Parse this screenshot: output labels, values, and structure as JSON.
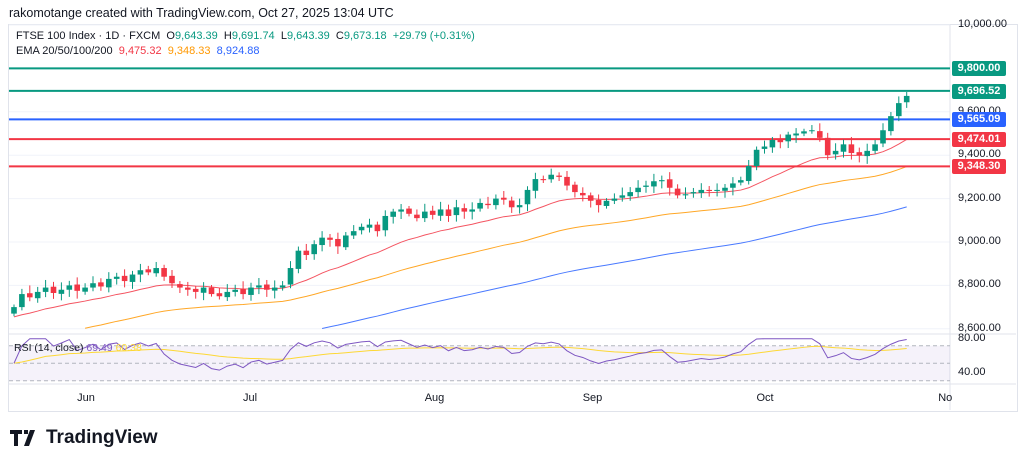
{
  "header": {
    "credit": "rakomotange created with TradingView.com, Oct 27, 2025 13:04 UTC"
  },
  "legend": {
    "symbol": "FTSE 100 Index · 1D · FXCM",
    "o_label": "O",
    "o": "9,643.39",
    "h_label": "H",
    "h": "9,691.74",
    "l_label": "L",
    "l": "9,643.39",
    "c_label": "C",
    "c": "9,673.18",
    "change": "+29.79 (+0.31%)",
    "ema_label": "EMA 20/50/100/200",
    "ema20": "9,475.32",
    "ema50": "9,348.33",
    "ema100": "8,924.88"
  },
  "rsi": {
    "label": "RSI (14, close)",
    "value": "69.49",
    "ma": "60.38",
    "axis_top": "80.00",
    "axis_mid": "40.00"
  },
  "footer": {
    "logo_text": "TradingView"
  },
  "chart_data": {
    "type": "candlestick",
    "title": "FTSE 100 Index · 1D · FXCM",
    "ylim": [
      8600,
      10000
    ],
    "y_ticks": [
      "10,000.00",
      "9,600.00",
      "9,400.00",
      "9,200.00",
      "9,000.00",
      "8,800.00",
      "8,600.00"
    ],
    "y_tick_values": [
      10000,
      9600,
      9400,
      9200,
      9000,
      8800,
      8600
    ],
    "x_labels": [
      {
        "label": "Jun",
        "index": 9
      },
      {
        "label": "Jul",
        "index": 30
      },
      {
        "label": "Aug",
        "index": 53
      },
      {
        "label": "Sep",
        "index": 73
      },
      {
        "label": "Oct",
        "index": 95
      },
      {
        "label": "No",
        "index": 118
      }
    ],
    "closes": [
      8700,
      8760,
      8745,
      8770,
      8790,
      8765,
      8780,
      8800,
      8775,
      8790,
      8810,
      8795,
      8830,
      8840,
      8820,
      8850,
      8870,
      8860,
      8880,
      8840,
      8810,
      8790,
      8780,
      8770,
      8790,
      8760,
      8750,
      8770,
      8780,
      8760,
      8790,
      8800,
      8780,
      8790,
      8800,
      8880,
      8960,
      8940,
      8990,
      9020,
      9010,
      8980,
      9030,
      9050,
      9070,
      9080,
      9050,
      9120,
      9140,
      9150,
      9130,
      9110,
      9140,
      9125,
      9150,
      9120,
      9160,
      9140,
      9150,
      9180,
      9170,
      9200,
      9195,
      9160,
      9170,
      9240,
      9290,
      9285,
      9310,
      9300,
      9260,
      9230,
      9215,
      9190,
      9170,
      9190,
      9200,
      9215,
      9230,
      9250,
      9260,
      9280,
      9285,
      9250,
      9215,
      9220,
      9230,
      9240,
      9235,
      9240,
      9250,
      9270,
      9285,
      9350,
      9425,
      9440,
      9470,
      9460,
      9495,
      9500,
      9510,
      9515,
      9480,
      9400,
      9420,
      9450,
      9410,
      9400,
      9420,
      9450,
      9515,
      9580,
      9640,
      9673.18
    ],
    "ema": [
      {
        "name": "EMA 20",
        "period": 20,
        "seed": 8650,
        "color": "#f23645"
      },
      {
        "name": "EMA 50",
        "period": 50,
        "seed": 8520,
        "color": "#ff9800"
      },
      {
        "name": "EMA 100",
        "period": 100,
        "seed": 8330,
        "color": "#2962ff"
      }
    ],
    "levels": [
      {
        "value": 9800,
        "label": "9,800.00",
        "color": "#089981"
      },
      {
        "value": 9696.52,
        "label": "9,696.52",
        "color": "#089981"
      },
      {
        "value": 9565.09,
        "label": "9,565.09",
        "color": "#2962ff"
      },
      {
        "value": 9474.01,
        "label": "9,474.01",
        "color": "#f23645"
      },
      {
        "value": 9348.3,
        "label": "9,348.30",
        "color": "#f23645"
      }
    ],
    "colors": {
      "up": "#089981",
      "down": "#f23645",
      "rsi": "#7e57c2",
      "rsi_ma": "#fdd835"
    }
  }
}
